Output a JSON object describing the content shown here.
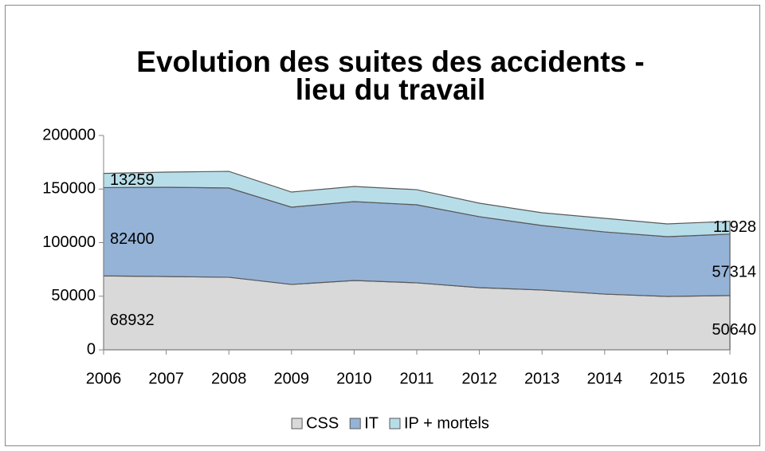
{
  "chart_data": {
    "type": "stacked_area",
    "title": [
      "Evolution des suites des accidents -",
      "lieu du travail"
    ],
    "categories": [
      "2006",
      "2007",
      "2008",
      "2009",
      "2010",
      "2011",
      "2012",
      "2013",
      "2014",
      "2015",
      "2016"
    ],
    "series": [
      {
        "name": "CSS",
        "color": "#d9d9d9",
        "values": [
          68932,
          68400,
          67700,
          61000,
          64700,
          62500,
          58000,
          55800,
          52000,
          49800,
          50640
        ]
      },
      {
        "name": "IT",
        "color": "#95b3d7",
        "values": [
          82400,
          83300,
          83300,
          72100,
          73600,
          72800,
          66200,
          60200,
          58000,
          55800,
          57314
        ]
      },
      {
        "name": "IP + mortels",
        "color": "#b7dee8",
        "values": [
          13259,
          14100,
          15500,
          14100,
          14100,
          14100,
          12600,
          11900,
          12700,
          11900,
          11928
        ]
      }
    ],
    "ylim": [
      0,
      200000
    ],
    "yticks": [
      0,
      50000,
      100000,
      150000,
      200000
    ],
    "legend": "bottom"
  }
}
